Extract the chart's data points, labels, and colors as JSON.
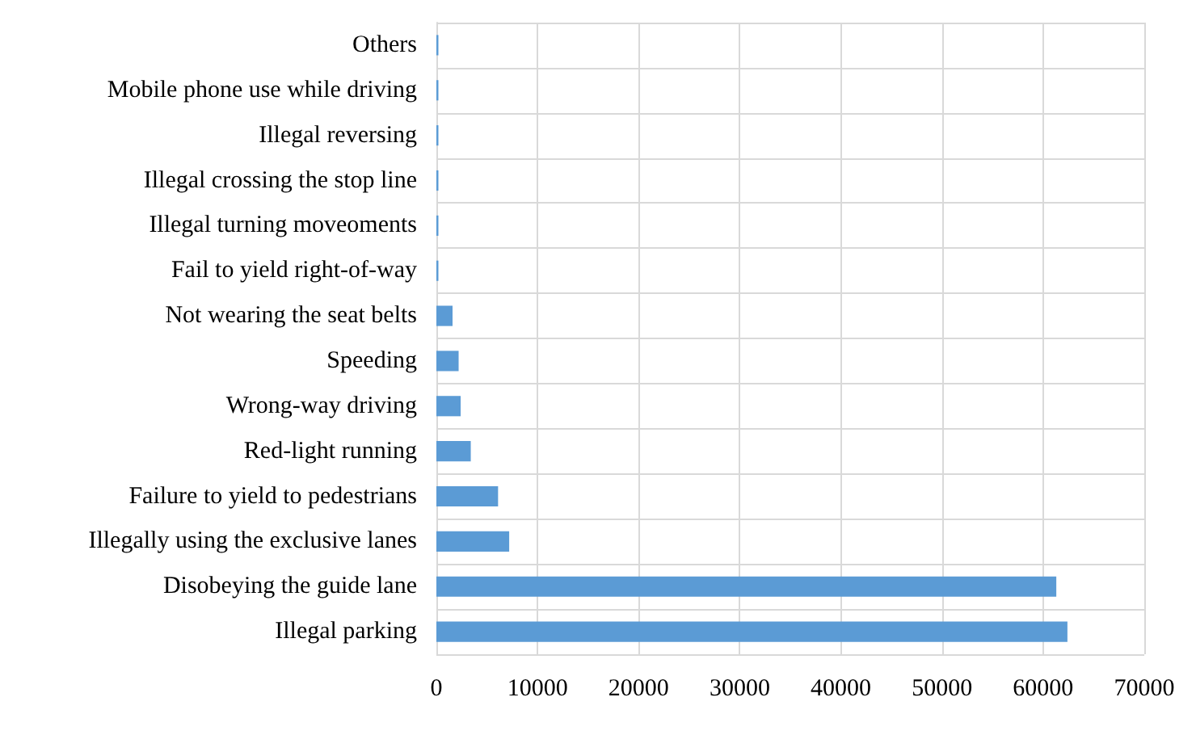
{
  "chart_data": {
    "type": "bar",
    "orientation": "horizontal",
    "categories": [
      "Others",
      "Mobile phone use while driving",
      "Illegal reversing",
      "Illegal crossing the stop line",
      "Illegal turning moveoments",
      "Fail to yield right-of-way",
      "Not wearing the seat belts",
      "Speeding",
      "Wrong-way driving",
      "Red-light running",
      "Failure to yield to pedestrians",
      "Illegally using the exclusive lanes",
      "Disobeying the guide lane",
      "Illegal parking"
    ],
    "values": [
      200,
      200,
      200,
      200,
      200,
      200,
      1600,
      2200,
      2400,
      3400,
      6100,
      7200,
      61300,
      62400
    ],
    "color": "#5b9bd5",
    "xlim": [
      0,
      70000
    ],
    "xticks": [
      0,
      10000,
      20000,
      30000,
      40000,
      50000,
      60000,
      70000
    ],
    "grid": true
  }
}
